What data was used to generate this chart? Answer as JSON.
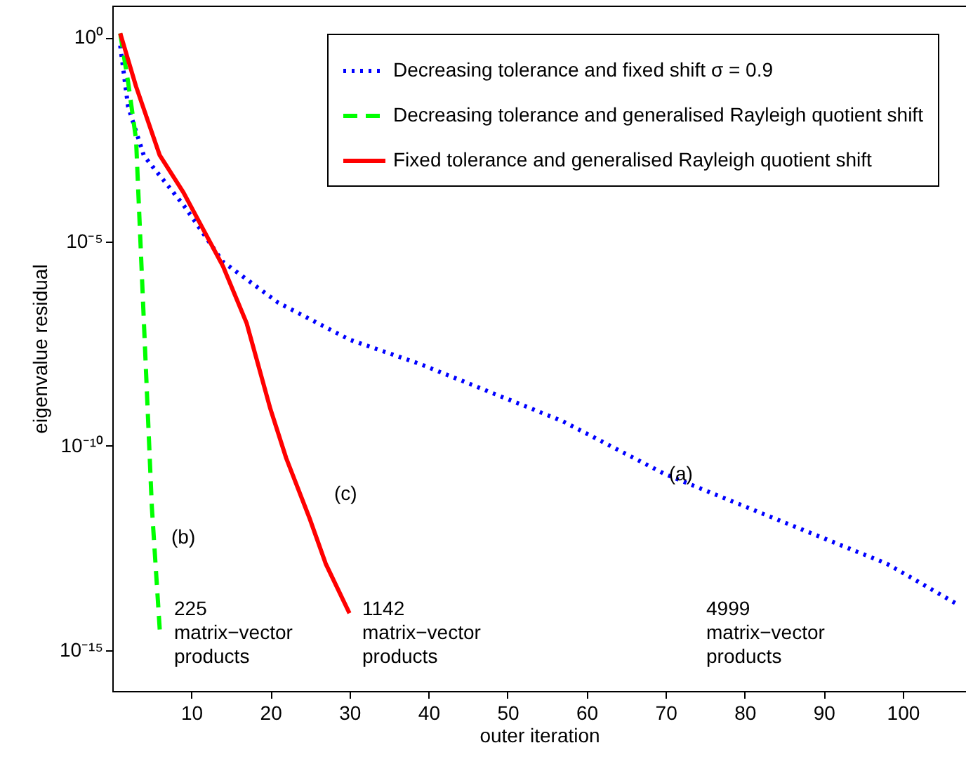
{
  "chart_data": {
    "type": "line",
    "xlabel": "outer iteration",
    "ylabel": "eigenvalue residual",
    "log": "y",
    "xlim": [
      0,
      108
    ],
    "xticks": [
      10,
      20,
      30,
      40,
      50,
      60,
      70,
      80,
      90,
      100
    ],
    "ylim": [
      1e-16,
      6
    ],
    "yticks": [
      {
        "value": 1,
        "label": "10⁰"
      },
      {
        "value": 1e-05,
        "label": "10⁻⁵"
      },
      {
        "value": 1e-10,
        "label": "10⁻¹⁰"
      },
      {
        "value": 1e-15,
        "label": "10⁻¹⁵"
      }
    ],
    "legend": "top right",
    "grid": false,
    "series": [
      {
        "name": "Decreasing tolerance and fixed shift σ = 0.9",
        "color": "#0000ff",
        "line_style": "dotted",
        "x": [
          1,
          2,
          4,
          9,
          14,
          21,
          30,
          39,
          57,
          70,
          98,
          107
        ],
        "values": [
          0.63,
          0.02,
          0.00126,
          7.9e-05,
          3.2e-06,
          3.2e-07,
          4e-08,
          1e-08,
          4e-10,
          2e-11,
          1.3e-13,
          1.3e-14
        ]
      },
      {
        "name": "Decreasing tolerance and generalised Rayleigh quotient shift",
        "color": "#00ff00",
        "line_style": "dashed",
        "x": [
          1,
          2,
          3,
          4,
          5,
          6
        ],
        "values": [
          1.26,
          0.08,
          0.0032,
          1e-07,
          3.2e-12,
          3.2e-15
        ]
      },
      {
        "name": "Fixed tolerance and generalised Rayleigh quotient shift",
        "color": "#ff0000",
        "line_style": "solid",
        "x": [
          1,
          3,
          6,
          9,
          14,
          17,
          20,
          22,
          25,
          27,
          30
        ],
        "values": [
          1.26,
          0.063,
          0.0013,
          0.00016,
          2.5e-06,
          1e-07,
          8e-10,
          5e-11,
          1.6e-12,
          1.3e-13,
          8e-15
        ]
      }
    ],
    "annotations": [
      {
        "text": "(a)",
        "x": 70.4,
        "y": 2e-11
      },
      "(b)",
      "(c)",
      "225\nmatrix−vector\nproducts",
      "1142\nmatrix−vector\nproducts",
      "4999\nmatrix−vector\nproducts"
    ]
  }
}
